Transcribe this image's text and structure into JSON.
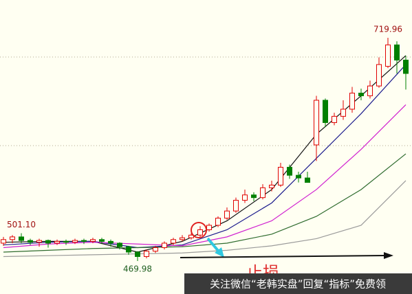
{
  "chart_data": {
    "type": "candlestick",
    "up_color": "#e00000",
    "down_color": "#008000",
    "open": [
      490,
      494,
      497,
      493,
      491,
      493,
      490,
      492,
      491,
      493,
      492,
      494,
      492,
      490,
      486,
      480,
      475,
      481,
      485,
      490,
      494,
      496,
      499,
      505,
      510,
      518,
      526,
      538,
      544,
      541,
      552,
      555,
      575,
      566,
      563,
      600,
      650,
      625,
      632,
      640,
      658,
      655,
      666,
      688,
      712,
      695
    ],
    "high": [
      497,
      499,
      501.1,
      495,
      495,
      494,
      494,
      494,
      495,
      495,
      496,
      496,
      494,
      491,
      487,
      481,
      483,
      487,
      492,
      496,
      499,
      501,
      509,
      512,
      520,
      530,
      541,
      550,
      547,
      556,
      560,
      580,
      578,
      570,
      570,
      655,
      652,
      636,
      650,
      665,
      663,
      672,
      698,
      719.96,
      716,
      700
    ],
    "low": [
      487,
      490,
      490,
      488,
      486,
      485,
      488,
      488,
      489,
      489,
      490,
      489,
      486,
      483,
      477,
      469.98,
      473,
      479,
      483,
      488,
      492,
      494,
      497,
      503,
      508,
      516,
      524,
      535,
      537,
      539,
      548,
      553,
      562,
      558,
      558,
      582,
      620,
      622,
      628,
      636,
      650,
      652,
      664,
      686,
      680,
      662
    ],
    "close": [
      494,
      497,
      493,
      491,
      493,
      490,
      492,
      491,
      493,
      492,
      494,
      492,
      490,
      486,
      480,
      475,
      481,
      485,
      490,
      494,
      496,
      499,
      505,
      510,
      518,
      526,
      538,
      544,
      541,
      552,
      555,
      575,
      566,
      563,
      558,
      650,
      625,
      632,
      640,
      658,
      655,
      666,
      690,
      712,
      695,
      680
    ],
    "series": [
      {
        "name": "MA5",
        "color": "#111111",
        "x": [
          0,
          5,
          10,
          15,
          20,
          25,
          30,
          35,
          40,
          45
        ],
        "values": [
          491,
          492,
          492,
          480,
          492,
          515,
          550,
          612,
          655,
          700
        ]
      },
      {
        "name": "MA10",
        "color": "#1a1a8c",
        "x": [
          0,
          5,
          10,
          15,
          20,
          25,
          30,
          35,
          40,
          45
        ],
        "values": [
          488,
          491,
          492,
          485,
          488,
          505,
          535,
          585,
          635,
          690
        ]
      },
      {
        "name": "MA20",
        "color": "#d020d0",
        "x": [
          0,
          5,
          10,
          15,
          20,
          25,
          30,
          35,
          40,
          45
        ],
        "values": [
          485,
          489,
          491,
          489,
          487,
          497,
          515,
          550,
          595,
          645
        ]
      },
      {
        "name": "MA30",
        "color": "#2e6b2e",
        "x": [
          0,
          5,
          10,
          15,
          20,
          25,
          30,
          35,
          40,
          45
        ],
        "values": [
          480,
          482,
          484,
          485,
          486,
          490,
          500,
          520,
          550,
          590
        ]
      },
      {
        "name": "MA60",
        "color": "#9a9a9a",
        "x": [
          0,
          5,
          10,
          15,
          20,
          25,
          30,
          35,
          40,
          45
        ],
        "values": [
          475,
          476,
          477,
          478,
          479,
          482,
          487,
          495,
          510,
          560
        ]
      }
    ],
    "annotations": [
      {
        "text": "501.10",
        "value": 501.1,
        "color": "#a01010"
      },
      {
        "text": "469.98",
        "value": 469.98,
        "color": "#206020"
      },
      {
        "text": "719.96",
        "value": 719.96,
        "color": "#a01010"
      }
    ],
    "stop_loss_text": "止损",
    "watermark": "关注微信“老韩实盘”回复“指标”免费领"
  }
}
